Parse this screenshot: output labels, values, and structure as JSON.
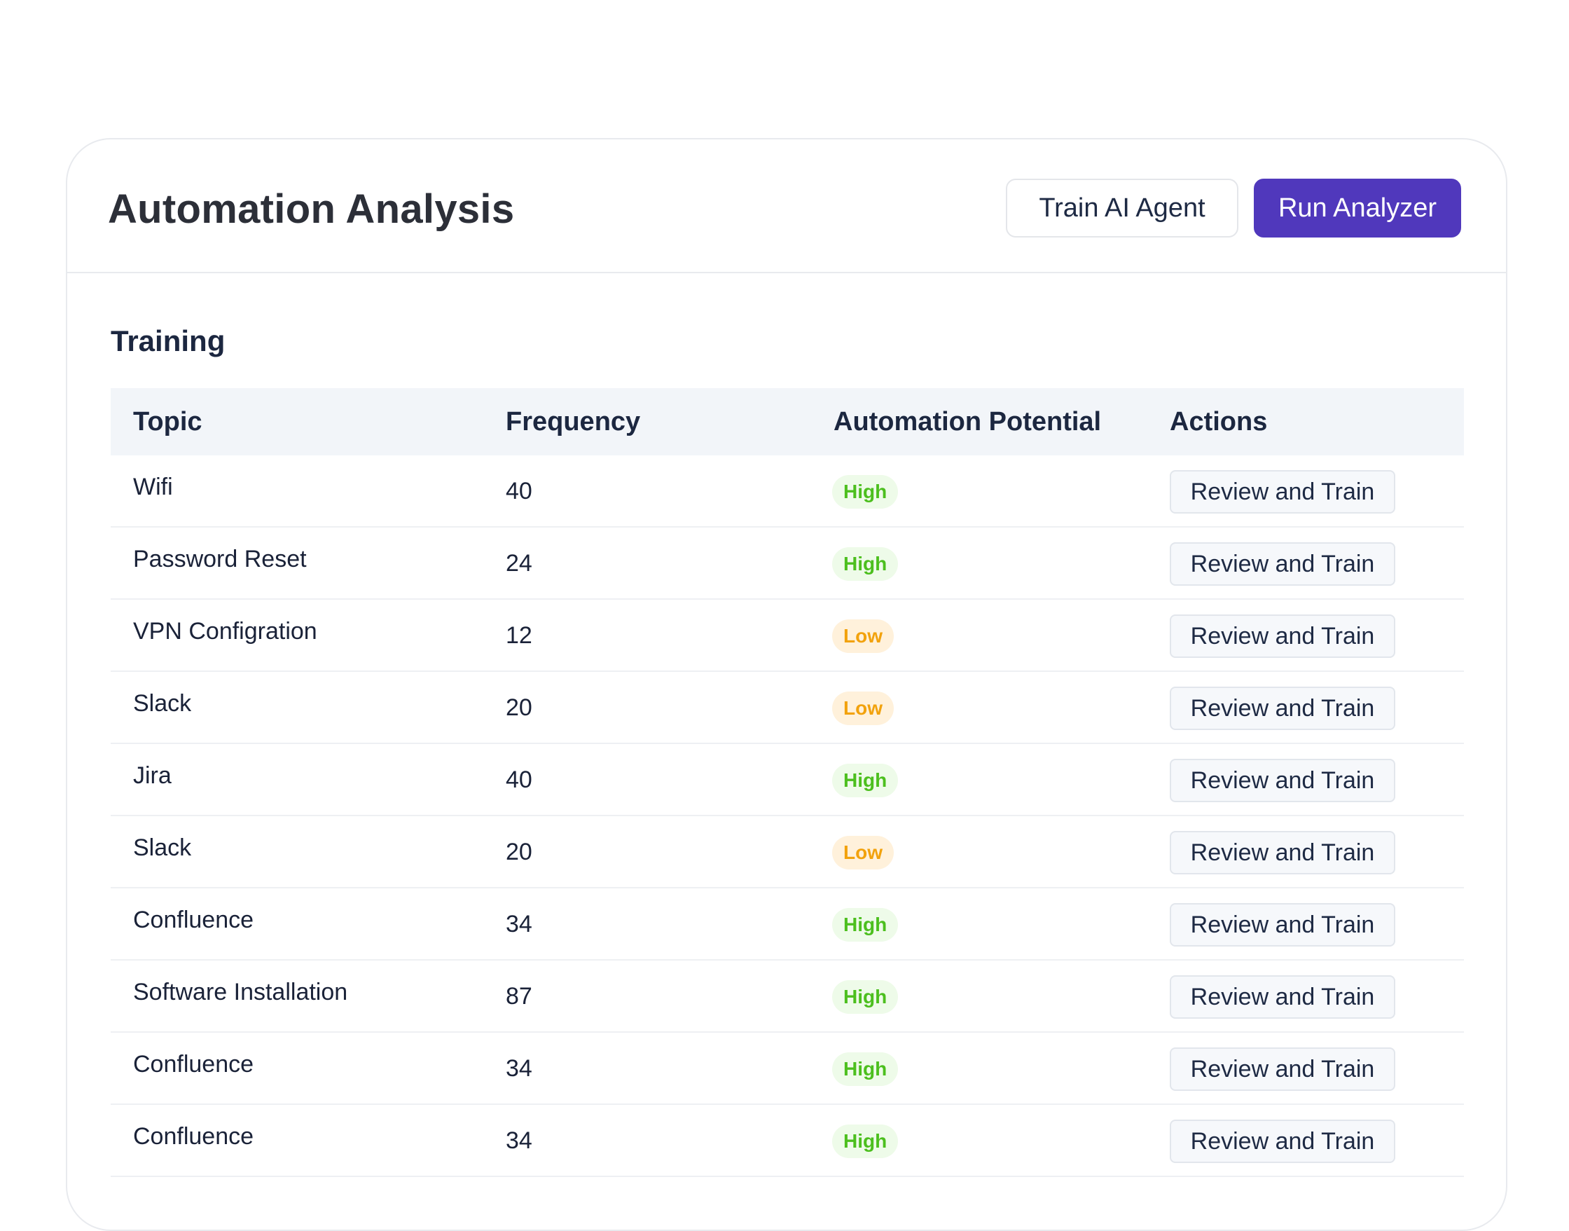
{
  "header": {
    "title": "Automation Analysis",
    "train_button": "Train AI Agent",
    "run_button": "Run Analyzer"
  },
  "section": {
    "title": "Training"
  },
  "table": {
    "columns": [
      "Topic",
      "Frequency",
      "Automation Potential",
      "Actions"
    ],
    "rows": [
      {
        "topic": "Wifi",
        "frequency": "40",
        "potential": "High",
        "action": "Review and Train"
      },
      {
        "topic": "Password Reset",
        "frequency": "24",
        "potential": "High",
        "action": "Review and Train"
      },
      {
        "topic": "VPN Configration",
        "frequency": "12",
        "potential": "Low",
        "action": "Review and Train"
      },
      {
        "topic": "Slack",
        "frequency": "20",
        "potential": "Low",
        "action": "Review and Train"
      },
      {
        "topic": "Jira",
        "frequency": "40",
        "potential": "High",
        "action": "Review and Train"
      },
      {
        "topic": "Slack",
        "frequency": "20",
        "potential": "Low",
        "action": "Review and Train"
      },
      {
        "topic": "Confluence",
        "frequency": "34",
        "potential": "High",
        "action": "Review and Train"
      },
      {
        "topic": "Software Installation",
        "frequency": "87",
        "potential": "High",
        "action": "Review and Train"
      },
      {
        "topic": "Confluence",
        "frequency": "34",
        "potential": "High",
        "action": "Review and Train"
      },
      {
        "topic": "Confluence",
        "frequency": "34",
        "potential": "High",
        "action": "Review and Train"
      }
    ]
  },
  "colors": {
    "accent": "#5038bc",
    "high_text": "#4cbf1e",
    "high_bg": "#eefbe9",
    "low_text": "#f2a20d",
    "low_bg": "#fff1db"
  }
}
